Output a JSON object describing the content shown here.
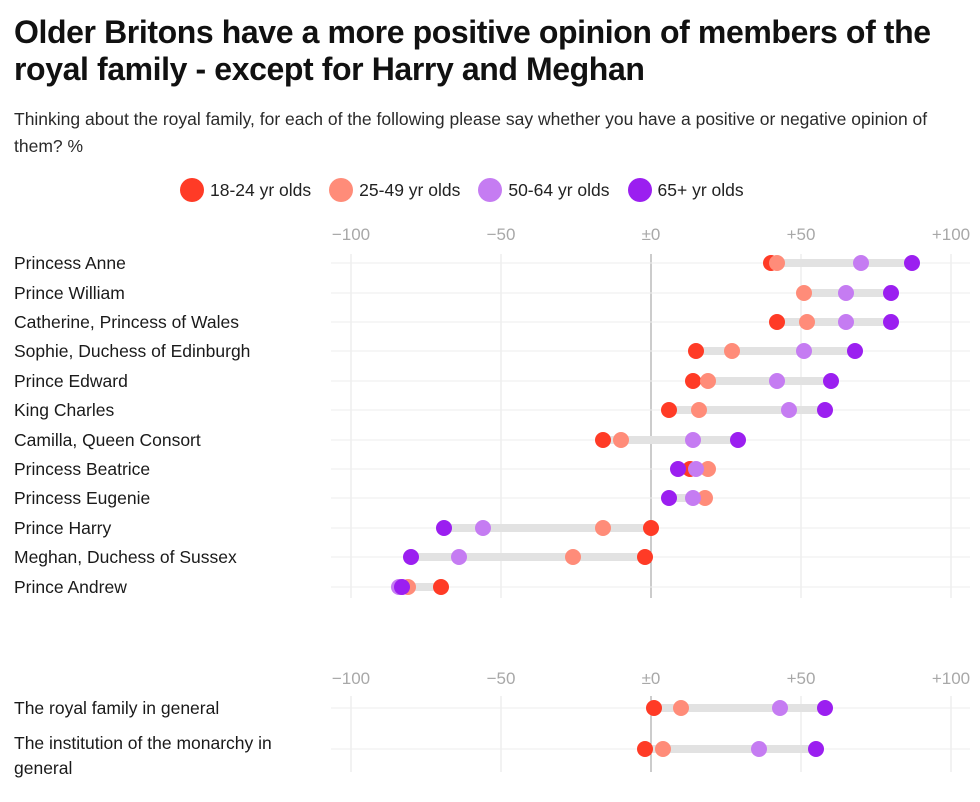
{
  "title": "Older Britons have a more positive opinion of members of the royal family - except for Harry and Meghan",
  "subtitle": "Thinking about the royal family, for each of the following please say whether you have a positive or negative opinion of them? %",
  "colors": {
    "age_18_24": "#ff3b26",
    "age_25_49": "#ff8c79",
    "age_50_64": "#c57cf2",
    "age_65_plus": "#9b1ff0",
    "range_bar": "#e2e2e2",
    "grid": "#e6e6e6",
    "zero_line": "#9a9a9a"
  },
  "chart_data": [
    {
      "type": "dot-range",
      "title": "Thinking about the royal family, for each of the following please say whether you have a positive or negative opinion of them? %",
      "xlim": [
        -100,
        100
      ],
      "ticks": [
        {
          "value": -100,
          "label": "−100"
        },
        {
          "value": -50,
          "label": "−50"
        },
        {
          "value": 0,
          "label": "±0"
        },
        {
          "value": 50,
          "label": "+50"
        },
        {
          "value": 100,
          "label": "+100"
        }
      ],
      "series": [
        {
          "key": "age_18_24",
          "name": "18-24 yr olds"
        },
        {
          "key": "age_25_49",
          "name": "25-49 yr olds"
        },
        {
          "key": "age_50_64",
          "name": "50-64 yr olds"
        },
        {
          "key": "age_65_plus",
          "name": "65+ yr olds"
        }
      ],
      "categories": [
        {
          "name": "Princess Anne",
          "values": [
            40,
            42,
            70,
            87
          ]
        },
        {
          "name": "Prince William",
          "values": [
            null,
            51,
            65,
            80
          ]
        },
        {
          "name": "Catherine, Princess of Wales",
          "values": [
            42,
            52,
            65,
            80
          ]
        },
        {
          "name": "Sophie, Duchess of Edinburgh",
          "values": [
            15,
            27,
            51,
            68
          ]
        },
        {
          "name": "Prince Edward",
          "values": [
            14,
            19,
            42,
            60
          ]
        },
        {
          "name": "King Charles",
          "values": [
            6,
            16,
            46,
            58
          ]
        },
        {
          "name": "Camilla, Queen Consort",
          "values": [
            -16,
            -10,
            14,
            29
          ]
        },
        {
          "name": "Princess Beatrice",
          "values": [
            13,
            19,
            15,
            9
          ]
        },
        {
          "name": "Princess Eugenie",
          "values": [
            null,
            18,
            14,
            6
          ]
        },
        {
          "name": "Prince Harry",
          "values": [
            0,
            -16,
            -56,
            -69
          ]
        },
        {
          "name": "Meghan, Duchess of Sussex",
          "values": [
            -2,
            -26,
            -64,
            -80
          ]
        },
        {
          "name": "Prince Andrew",
          "values": [
            -70,
            -81,
            -84,
            -83
          ]
        }
      ]
    },
    {
      "type": "dot-range",
      "xlim": [
        -100,
        100
      ],
      "ticks": [
        {
          "value": -100,
          "label": "−100"
        },
        {
          "value": -50,
          "label": "−50"
        },
        {
          "value": 0,
          "label": "±0"
        },
        {
          "value": 50,
          "label": "+50"
        },
        {
          "value": 100,
          "label": "+100"
        }
      ],
      "series": [
        {
          "key": "age_18_24",
          "name": "18-24 yr olds"
        },
        {
          "key": "age_25_49",
          "name": "25-49 yr olds"
        },
        {
          "key": "age_50_64",
          "name": "50-64 yr olds"
        },
        {
          "key": "age_65_plus",
          "name": "65+ yr olds"
        }
      ],
      "categories": [
        {
          "name": "The royal family in general",
          "values": [
            1,
            10,
            43,
            58
          ]
        },
        {
          "name": "The institution of the monarchy in general",
          "values": [
            -2,
            4,
            36,
            55
          ]
        }
      ]
    }
  ]
}
